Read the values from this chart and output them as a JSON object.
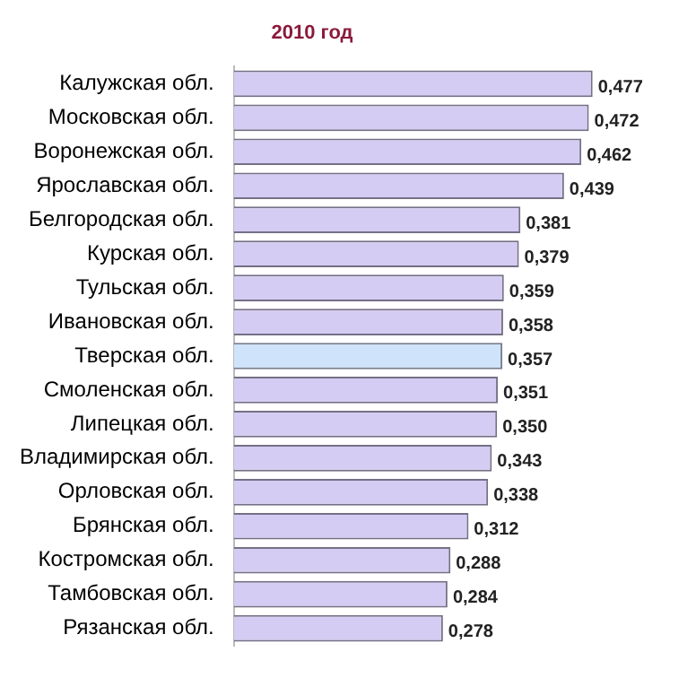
{
  "chart_data": {
    "type": "bar",
    "orientation": "horizontal",
    "title": "2010 год",
    "categories": [
      "Калужская обл.",
      "Московская обл.",
      "Воронежская обл.",
      "Ярославская обл.",
      "Белгородская обл.",
      "Курская обл.",
      "Тульская обл.",
      "Ивановская обл.",
      "Тверская обл.",
      "Смоленская обл.",
      "Липецкая обл.",
      "Владимирская обл.",
      "Орловская обл.",
      "Брянская обл.",
      "Костромская обл.",
      "Тамбовская обл.",
      "Рязанская обл."
    ],
    "values": [
      0.477,
      0.472,
      0.462,
      0.439,
      0.381,
      0.379,
      0.359,
      0.358,
      0.357,
      0.351,
      0.35,
      0.343,
      0.338,
      0.312,
      0.288,
      0.284,
      0.278
    ],
    "colors": [
      "#d4ccf2",
      "#d4ccf2",
      "#d4ccf2",
      "#d4ccf2",
      "#d4ccf2",
      "#d4ccf2",
      "#d4ccf2",
      "#d4ccf2",
      "#cfe3fa",
      "#d4ccf2",
      "#d4ccf2",
      "#d4ccf2",
      "#d4ccf2",
      "#d4ccf2",
      "#d4ccf2",
      "#d4ccf2",
      "#d4ccf2"
    ],
    "value_labels": [
      "0,477",
      "0,472",
      "0,462",
      "0,439",
      "0,381",
      "0,379",
      "0,359",
      "0,358",
      "0,357",
      "0,351",
      "0,350",
      "0,343",
      "0,338",
      "0,312",
      "0,288",
      "0,284",
      "0,278"
    ],
    "legend": false
  }
}
